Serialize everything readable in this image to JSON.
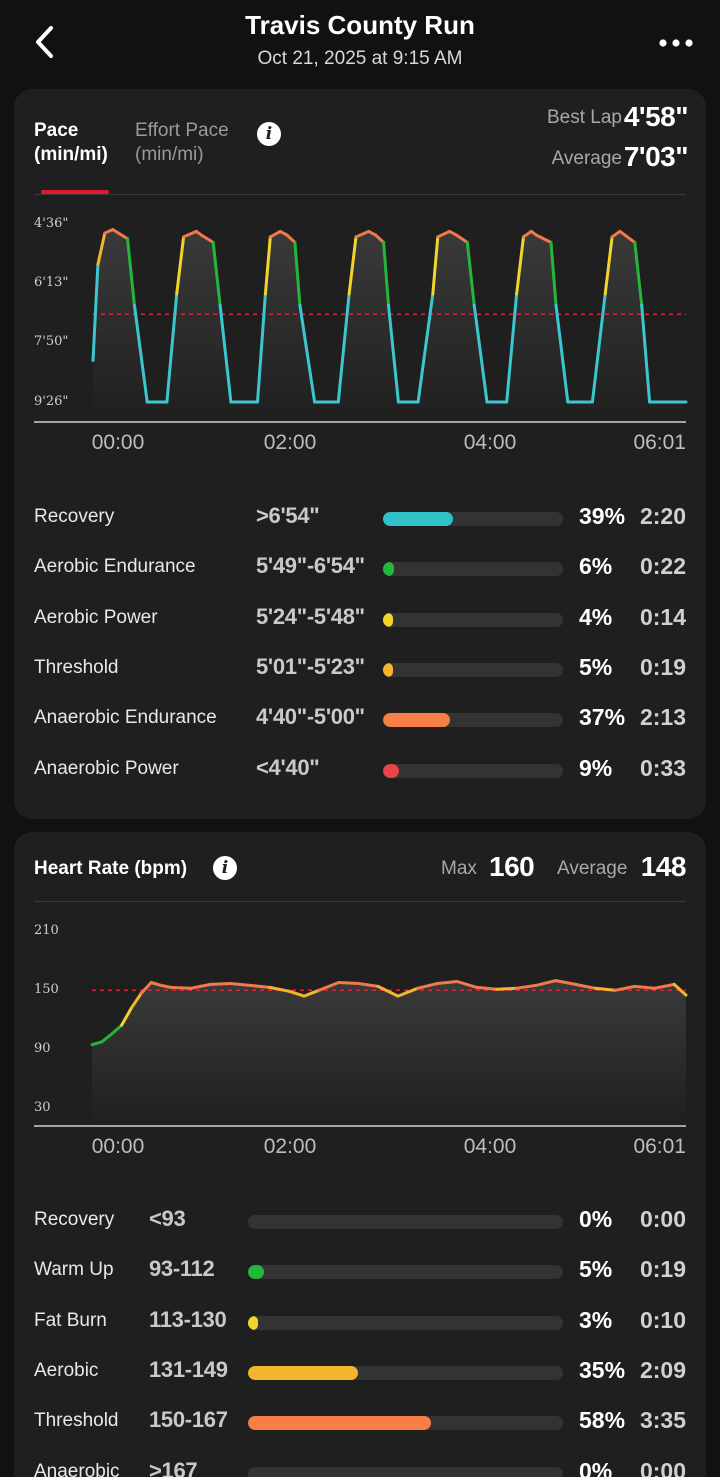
{
  "header": {
    "title": "Travis County Run",
    "subtitle": "Oct 21, 2025 at 9:15 AM"
  },
  "pace": {
    "tab_active_line1": "Pace",
    "tab_active_line2": "(min/mi)",
    "tab_inactive_line1": "Effort Pace",
    "tab_inactive_line2": "(min/mi)",
    "best_lap_label": "Best Lap",
    "best_lap_value": "4'58\"",
    "average_label": "Average",
    "average_value": "7'03\"",
    "zones": [
      {
        "name": "Recovery",
        "range": ">6'54\"",
        "pct": "39%",
        "fraction": 0.39,
        "time": "2:20",
        "color": "#33c1c9"
      },
      {
        "name": "Aerobic Endurance",
        "range": "5'49\"-6'54\"",
        "pct": "6%",
        "fraction": 0.06,
        "time": "0:22",
        "color": "#22b83a"
      },
      {
        "name": "Aerobic Power",
        "range": "5'24\"-5'48\"",
        "pct": "4%",
        "fraction": 0.04,
        "time": "0:14",
        "color": "#f2d52c"
      },
      {
        "name": "Threshold",
        "range": "5'01\"-5'23\"",
        "pct": "5%",
        "fraction": 0.05,
        "time": "0:19",
        "color": "#f4b52e"
      },
      {
        "name": "Anaerobic Endurance",
        "range": "4'40\"-5'00\"",
        "pct": "37%",
        "fraction": 0.37,
        "time": "2:13",
        "color": "#f57f45"
      },
      {
        "name": "Anaerobic Power",
        "range": "<4'40\"",
        "pct": "9%",
        "fraction": 0.09,
        "time": "0:33",
        "color": "#e8424a"
      }
    ]
  },
  "heart_rate": {
    "title": "Heart Rate (bpm)",
    "max_label": "Max",
    "max_value": "160",
    "average_label": "Average",
    "average_value": "148",
    "zones": [
      {
        "name": "Recovery",
        "range": "<93",
        "pct": "0%",
        "fraction": 0.0,
        "time": "0:00",
        "color": "#33c1c9"
      },
      {
        "name": "Warm Up",
        "range": "93-112",
        "pct": "5%",
        "fraction": 0.05,
        "time": "0:19",
        "color": "#22b83a"
      },
      {
        "name": "Fat Burn",
        "range": "113-130",
        "pct": "3%",
        "fraction": 0.03,
        "time": "0:10",
        "color": "#f2d52c"
      },
      {
        "name": "Aerobic",
        "range": "131-149",
        "pct": "35%",
        "fraction": 0.35,
        "time": "2:09",
        "color": "#f4b52e"
      },
      {
        "name": "Threshold",
        "range": "150-167",
        "pct": "58%",
        "fraction": 0.58,
        "time": "3:35",
        "color": "#f57f45"
      },
      {
        "name": "Anaerobic",
        "range": ">167",
        "pct": "0%",
        "fraction": 0.0,
        "time": "0:00",
        "color": "#e8424a"
      }
    ]
  },
  "chart_data": [
    {
      "type": "line",
      "y_ticks": [
        "4'36\"",
        "6'13\"",
        "7'50\"",
        "9'26\""
      ],
      "x_ticks": [
        "00:00",
        "02:00",
        "04:00",
        "06:01"
      ],
      "ylim": [
        9.43,
        4.6
      ],
      "reference_line": 7.05,
      "x": [
        0,
        0.05,
        0.12,
        0.2,
        0.35,
        0.42,
        0.55,
        0.62,
        0.68,
        0.75,
        0.85,
        0.92,
        1.05,
        1.1,
        1.22,
        1.29,
        1.4,
        1.47,
        1.6,
        1.67,
        1.75,
        1.8,
        1.9,
        1.97,
        2.05,
        2.1,
        2.25,
        2.3,
        2.42,
        2.49,
        2.6,
        2.67,
        2.8,
        2.87,
        2.95,
        3.0,
        3.1,
        3.17,
        3.25,
        3.3,
        3.45,
        3.5,
        3.62,
        3.69,
        3.8,
        3.87,
        4.0,
        4.07,
        4.15,
        4.2,
        4.3,
        4.37,
        4.45,
        4.5,
        4.65,
        4.7,
        4.82,
        4.89,
        5.0,
        5.07,
        5.2,
        5.27,
        5.35,
        5.4,
        5.5,
        5.57,
        5.65,
        5.7,
        5.85,
        5.9,
        6.02
      ],
      "y": [
        8.3,
        5.7,
        4.85,
        4.75,
        5.0,
        6.8,
        9.43,
        9.43,
        9.43,
        9.43,
        6.5,
        4.95,
        4.8,
        4.9,
        5.1,
        6.8,
        9.43,
        9.43,
        9.43,
        9.43,
        6.5,
        4.95,
        4.8,
        4.9,
        5.1,
        6.8,
        9.43,
        9.43,
        9.43,
        9.43,
        6.5,
        4.95,
        4.8,
        4.9,
        5.1,
        6.8,
        9.43,
        9.43,
        9.43,
        9.43,
        6.5,
        4.95,
        4.8,
        4.9,
        5.1,
        6.8,
        9.43,
        9.43,
        9.43,
        9.43,
        6.5,
        4.95,
        4.8,
        4.9,
        5.1,
        6.8,
        9.43,
        9.43,
        9.43,
        9.43,
        6.5,
        4.95,
        4.8,
        4.9,
        5.1,
        6.8,
        9.43,
        9.43,
        9.43,
        9.43,
        9.43
      ]
    },
    {
      "type": "line",
      "y_ticks": [
        "210",
        "150",
        "90",
        "30"
      ],
      "x_ticks": [
        "00:00",
        "02:00",
        "04:00",
        "06:01"
      ],
      "ylim": [
        30,
        210
      ],
      "reference_line": 148,
      "x": [
        0,
        0.1,
        0.2,
        0.3,
        0.4,
        0.5,
        0.6,
        0.7,
        0.8,
        1.0,
        1.2,
        1.4,
        1.6,
        1.8,
        2.0,
        2.15,
        2.3,
        2.5,
        2.7,
        2.9,
        3.1,
        3.3,
        3.5,
        3.7,
        3.9,
        4.1,
        4.3,
        4.5,
        4.7,
        4.9,
        5.1,
        5.3,
        5.5,
        5.7,
        5.9,
        6.02
      ],
      "y": [
        92,
        95,
        103,
        112,
        130,
        145,
        156,
        153,
        151,
        150,
        154,
        155,
        153,
        151,
        147,
        142,
        148,
        156,
        155,
        152,
        142,
        150,
        155,
        157,
        151,
        149,
        150,
        153,
        158,
        154,
        150,
        148,
        152,
        150,
        154,
        143
      ]
    }
  ]
}
